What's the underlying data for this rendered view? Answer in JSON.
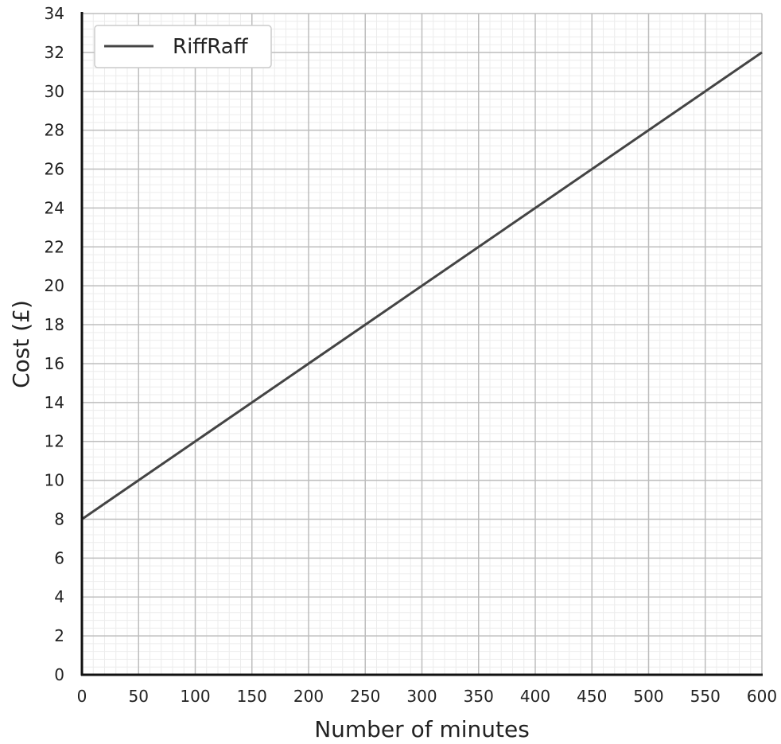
{
  "chart_data": {
    "type": "line",
    "title": "",
    "xlabel": "Number of minutes",
    "ylabel": "Cost (£)",
    "xlim": [
      0,
      600
    ],
    "ylim": [
      0,
      34
    ],
    "x_ticks": [
      0,
      50,
      100,
      150,
      200,
      250,
      300,
      350,
      400,
      450,
      500,
      550,
      600
    ],
    "y_ticks": [
      0,
      2,
      4,
      6,
      8,
      10,
      12,
      14,
      16,
      18,
      20,
      22,
      24,
      26,
      28,
      30,
      32,
      34
    ],
    "grid": true,
    "minor_grid": true,
    "legend_position": "top-left",
    "series": [
      {
        "name": "RiffRaff",
        "x": [
          0,
          600
        ],
        "y": [
          8,
          32
        ],
        "color": "#444444"
      }
    ]
  }
}
